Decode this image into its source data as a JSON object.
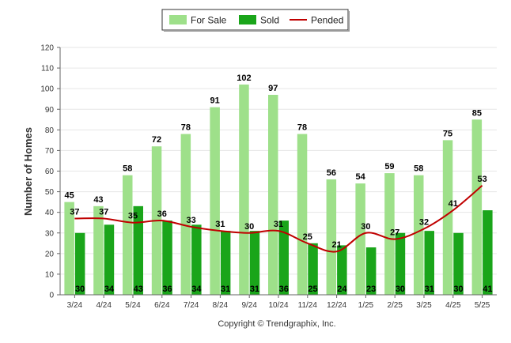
{
  "chart_data": {
    "type": "bar",
    "categories": [
      "3/24",
      "4/24",
      "5/24",
      "6/24",
      "7/24",
      "8/24",
      "9/24",
      "10/24",
      "11/24",
      "12/24",
      "1/25",
      "2/25",
      "3/25",
      "4/25",
      "5/25"
    ],
    "series": [
      {
        "name": "For Sale",
        "type": "bar",
        "color": "#9EE08A",
        "values": [
          45,
          43,
          58,
          72,
          78,
          91,
          102,
          97,
          78,
          56,
          54,
          59,
          58,
          75,
          85
        ]
      },
      {
        "name": "Sold",
        "type": "bar",
        "color": "#1AA51A",
        "values": [
          30,
          34,
          43,
          36,
          34,
          31,
          31,
          36,
          25,
          24,
          23,
          30,
          31,
          30,
          41
        ]
      },
      {
        "name": "Pended",
        "type": "line",
        "color": "#C00000",
        "values": [
          37,
          37,
          35,
          36,
          33,
          31,
          30,
          31,
          25,
          21,
          30,
          27,
          32,
          41,
          53
        ]
      }
    ],
    "ylabel": "Number of Homes",
    "ylim": [
      0,
      120
    ],
    "yticks": [
      0,
      10,
      20,
      30,
      40,
      50,
      60,
      70,
      80,
      90,
      100,
      110,
      120
    ],
    "grid": true,
    "legend_position": "top-center"
  },
  "footer": "Copyright © Trendgraphix, Inc."
}
